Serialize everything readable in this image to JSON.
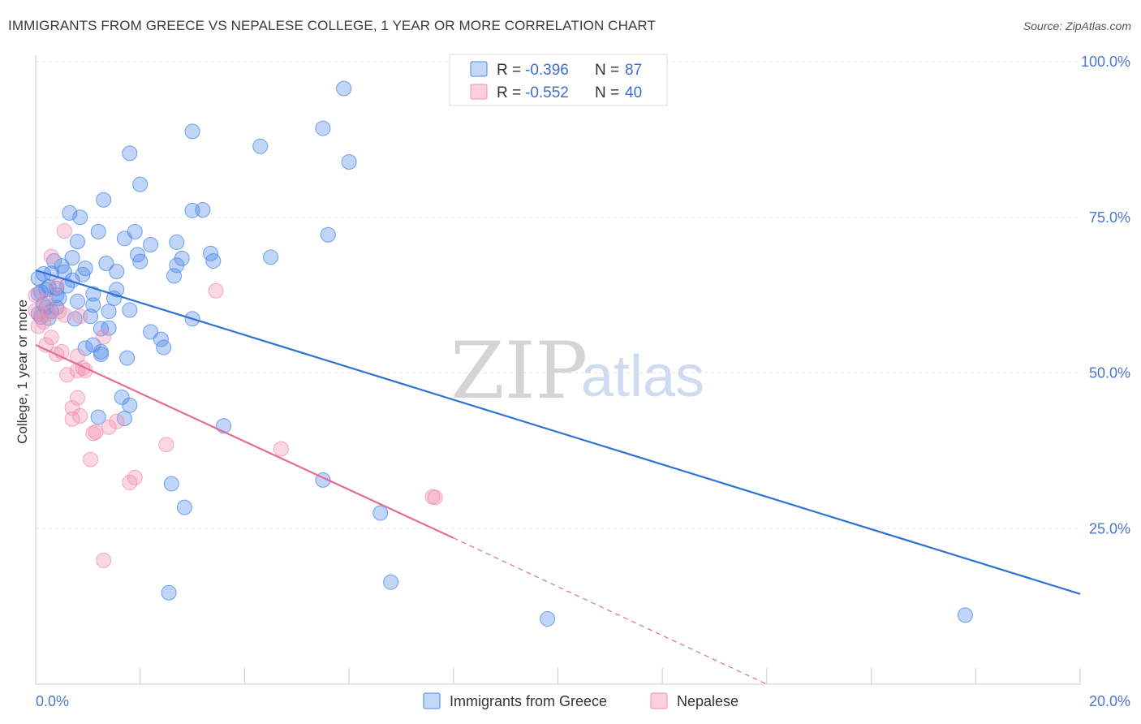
{
  "header": {
    "title": "IMMIGRANTS FROM GREECE VS NEPALESE COLLEGE, 1 YEAR OR MORE CORRELATION CHART",
    "source": "Source: ZipAtlas.com"
  },
  "watermark": {
    "zip": "ZIP",
    "atlas": "atlas"
  },
  "colors": {
    "blue": "#4a86e8",
    "blue_line": "#2f72d6",
    "pink": "#f08fb0",
    "pink_line": "#e36c98",
    "grid": "#e6e6e6"
  },
  "legend": {
    "rows": [
      {
        "r_label": "R = ",
        "r_value": "-0.396",
        "n_label": "N = ",
        "n_value": "87"
      },
      {
        "r_label": "R = ",
        "r_value": "-0.552",
        "n_label": "N = ",
        "n_value": "40"
      }
    ]
  },
  "chart_data": {
    "type": "scatter",
    "title": "IMMIGRANTS FROM GREECE VS NEPALESE COLLEGE, 1 YEAR OR MORE CORRELATION CHART",
    "xlabel": "",
    "ylabel": "College, 1 year or more",
    "xlim": [
      0,
      20
    ],
    "ylim": [
      0,
      100
    ],
    "x_tick_labels": [
      "0.0%",
      "20.0%"
    ],
    "y_ticks": [
      25,
      50,
      75,
      100
    ],
    "y_tick_labels": [
      "25.0%",
      "50.0%",
      "75.0%",
      "100.0%"
    ],
    "series": [
      {
        "name": "Immigrants from Greece",
        "color": "#4a86e8",
        "r": -0.396,
        "n": 87,
        "trend": {
          "x": [
            0,
            20
          ],
          "y": [
            66.5,
            14.5
          ]
        },
        "points": [
          [
            5.9,
            95.7
          ],
          [
            5.5,
            89.3
          ],
          [
            3.0,
            88.8
          ],
          [
            4.3,
            86.4
          ],
          [
            1.8,
            85.3
          ],
          [
            6.0,
            83.9
          ],
          [
            2.0,
            80.3
          ],
          [
            1.3,
            77.8
          ],
          [
            3.0,
            76.1
          ],
          [
            3.2,
            76.2
          ],
          [
            0.65,
            75.7
          ],
          [
            0.85,
            75.0
          ],
          [
            1.2,
            72.7
          ],
          [
            5.6,
            72.2
          ],
          [
            1.7,
            71.6
          ],
          [
            1.9,
            72.7
          ],
          [
            0.8,
            71.1
          ],
          [
            2.2,
            70.6
          ],
          [
            2.7,
            71.0
          ],
          [
            3.35,
            69.2
          ],
          [
            1.95,
            69.0
          ],
          [
            2.8,
            68.4
          ],
          [
            4.5,
            68.6
          ],
          [
            0.7,
            68.5
          ],
          [
            0.35,
            68.0
          ],
          [
            3.4,
            68.0
          ],
          [
            2.0,
            67.9
          ],
          [
            1.35,
            67.6
          ],
          [
            2.7,
            67.3
          ],
          [
            0.95,
            66.8
          ],
          [
            1.55,
            66.3
          ],
          [
            0.55,
            66.2
          ],
          [
            0.9,
            65.8
          ],
          [
            0.15,
            65.9
          ],
          [
            0.05,
            65.2
          ],
          [
            2.65,
            65.6
          ],
          [
            0.7,
            64.9
          ],
          [
            0.25,
            63.8
          ],
          [
            0.4,
            63.6
          ],
          [
            0.2,
            63.4
          ],
          [
            1.55,
            63.4
          ],
          [
            0.05,
            62.7
          ],
          [
            1.1,
            62.7
          ],
          [
            0.4,
            62.5
          ],
          [
            1.5,
            62.0
          ],
          [
            1.1,
            60.9
          ],
          [
            0.2,
            60.5
          ],
          [
            0.4,
            60.5
          ],
          [
            0.3,
            59.9
          ],
          [
            1.8,
            60.1
          ],
          [
            1.4,
            59.9
          ],
          [
            0.1,
            59.0
          ],
          [
            0.25,
            58.8
          ],
          [
            0.75,
            58.7
          ],
          [
            1.05,
            59.1
          ],
          [
            3.0,
            58.7
          ],
          [
            1.4,
            57.2
          ],
          [
            1.25,
            57.1
          ],
          [
            2.2,
            56.6
          ],
          [
            2.4,
            55.4
          ],
          [
            1.1,
            54.5
          ],
          [
            2.45,
            54.1
          ],
          [
            0.95,
            54.0
          ],
          [
            1.25,
            53.4
          ],
          [
            1.25,
            53.0
          ],
          [
            1.75,
            52.4
          ],
          [
            1.65,
            46.1
          ],
          [
            1.8,
            44.8
          ],
          [
            1.2,
            42.9
          ],
          [
            1.7,
            42.7
          ],
          [
            3.6,
            41.5
          ],
          [
            5.5,
            32.8
          ],
          [
            2.6,
            32.2
          ],
          [
            2.85,
            28.4
          ],
          [
            6.6,
            27.5
          ],
          [
            6.8,
            16.4
          ],
          [
            2.55,
            14.7
          ],
          [
            9.8,
            10.5
          ],
          [
            17.8,
            11.1
          ],
          [
            0.1,
            63.0
          ],
          [
            0.5,
            67.2
          ],
          [
            0.15,
            61.0
          ],
          [
            0.6,
            64.0
          ],
          [
            0.3,
            66.0
          ],
          [
            0.05,
            59.5
          ],
          [
            0.45,
            62.0
          ],
          [
            0.8,
            61.5
          ]
        ]
      },
      {
        "name": "Nepalese",
        "color": "#f08fb0",
        "r": -0.552,
        "n": 40,
        "trend": {
          "x": [
            0,
            8.0
          ],
          "y": [
            54.5,
            23.5
          ]
        },
        "trend_dashed": {
          "x": [
            8.0,
            14.0
          ],
          "y": [
            23.5,
            0
          ]
        },
        "points": [
          [
            0.55,
            72.8
          ],
          [
            0.3,
            68.7
          ],
          [
            0.4,
            64.0
          ],
          [
            3.45,
            63.2
          ],
          [
            0.0,
            62.5
          ],
          [
            0.2,
            61.6
          ],
          [
            0.0,
            60.0
          ],
          [
            0.45,
            59.9
          ],
          [
            0.25,
            59.5
          ],
          [
            0.1,
            59.4
          ],
          [
            0.55,
            59.3
          ],
          [
            0.85,
            59.1
          ],
          [
            0.3,
            55.7
          ],
          [
            1.3,
            55.8
          ],
          [
            0.2,
            54.5
          ],
          [
            0.5,
            53.4
          ],
          [
            0.4,
            53.0
          ],
          [
            0.8,
            52.7
          ],
          [
            0.9,
            50.8
          ],
          [
            0.8,
            50.4
          ],
          [
            0.95,
            50.4
          ],
          [
            0.6,
            49.7
          ],
          [
            0.8,
            46.0
          ],
          [
            0.7,
            44.4
          ],
          [
            0.85,
            43.1
          ],
          [
            0.7,
            42.6
          ],
          [
            1.55,
            42.2
          ],
          [
            1.4,
            41.3
          ],
          [
            1.15,
            40.5
          ],
          [
            1.1,
            40.3
          ],
          [
            2.5,
            38.5
          ],
          [
            4.7,
            37.8
          ],
          [
            1.05,
            36.1
          ],
          [
            1.9,
            33.2
          ],
          [
            1.8,
            32.4
          ],
          [
            7.6,
            30.1
          ],
          [
            7.65,
            30.0
          ],
          [
            1.3,
            19.9
          ],
          [
            0.05,
            57.5
          ],
          [
            0.15,
            58.2
          ]
        ]
      }
    ]
  }
}
